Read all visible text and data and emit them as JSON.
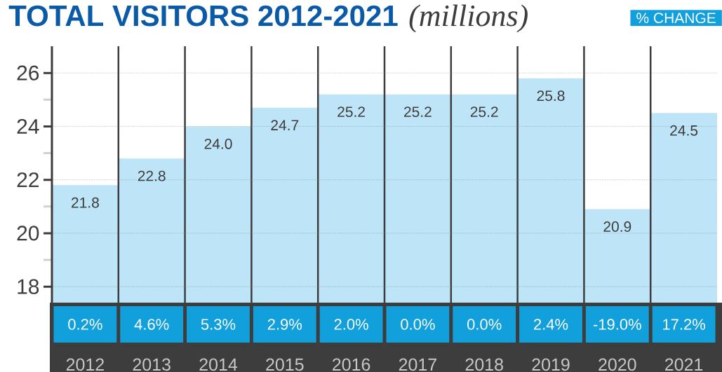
{
  "chart_data": {
    "type": "bar",
    "title": "TOTAL VISITORS 2012-2021",
    "subtitle": "(millions)",
    "categories": [
      "2012",
      "2013",
      "2014",
      "2015",
      "2016",
      "2017",
      "2018",
      "2019",
      "2020",
      "2021"
    ],
    "values": [
      21.8,
      22.8,
      24.0,
      24.7,
      25.2,
      25.2,
      25.2,
      25.8,
      20.9,
      24.5
    ],
    "color": "#bde4f7",
    "grid": true,
    "value_labels": [
      "21.8",
      "22.8",
      "24.0",
      "24.7",
      "25.2",
      "25.2",
      "25.2",
      "25.8",
      "20.9",
      "24.5"
    ],
    "ylim": [
      17.4,
      27.0
    ],
    "yticks": [
      18,
      {
        "value": 19,
        "label": null
      },
      20,
      {
        "value": 21,
        "label": null
      },
      22,
      {
        "value": 23,
        "label": null
      },
      24,
      {
        "value": 25,
        "label": null
      },
      26
    ],
    "annotations": [
      "% CHANGE",
      "0.2%",
      "4.6%",
      "5.3%",
      "2.9%",
      "2.0%",
      "0.0%",
      "0.0%",
      "2.4%",
      "-19.0%",
      "17.2%"
    ]
  }
}
